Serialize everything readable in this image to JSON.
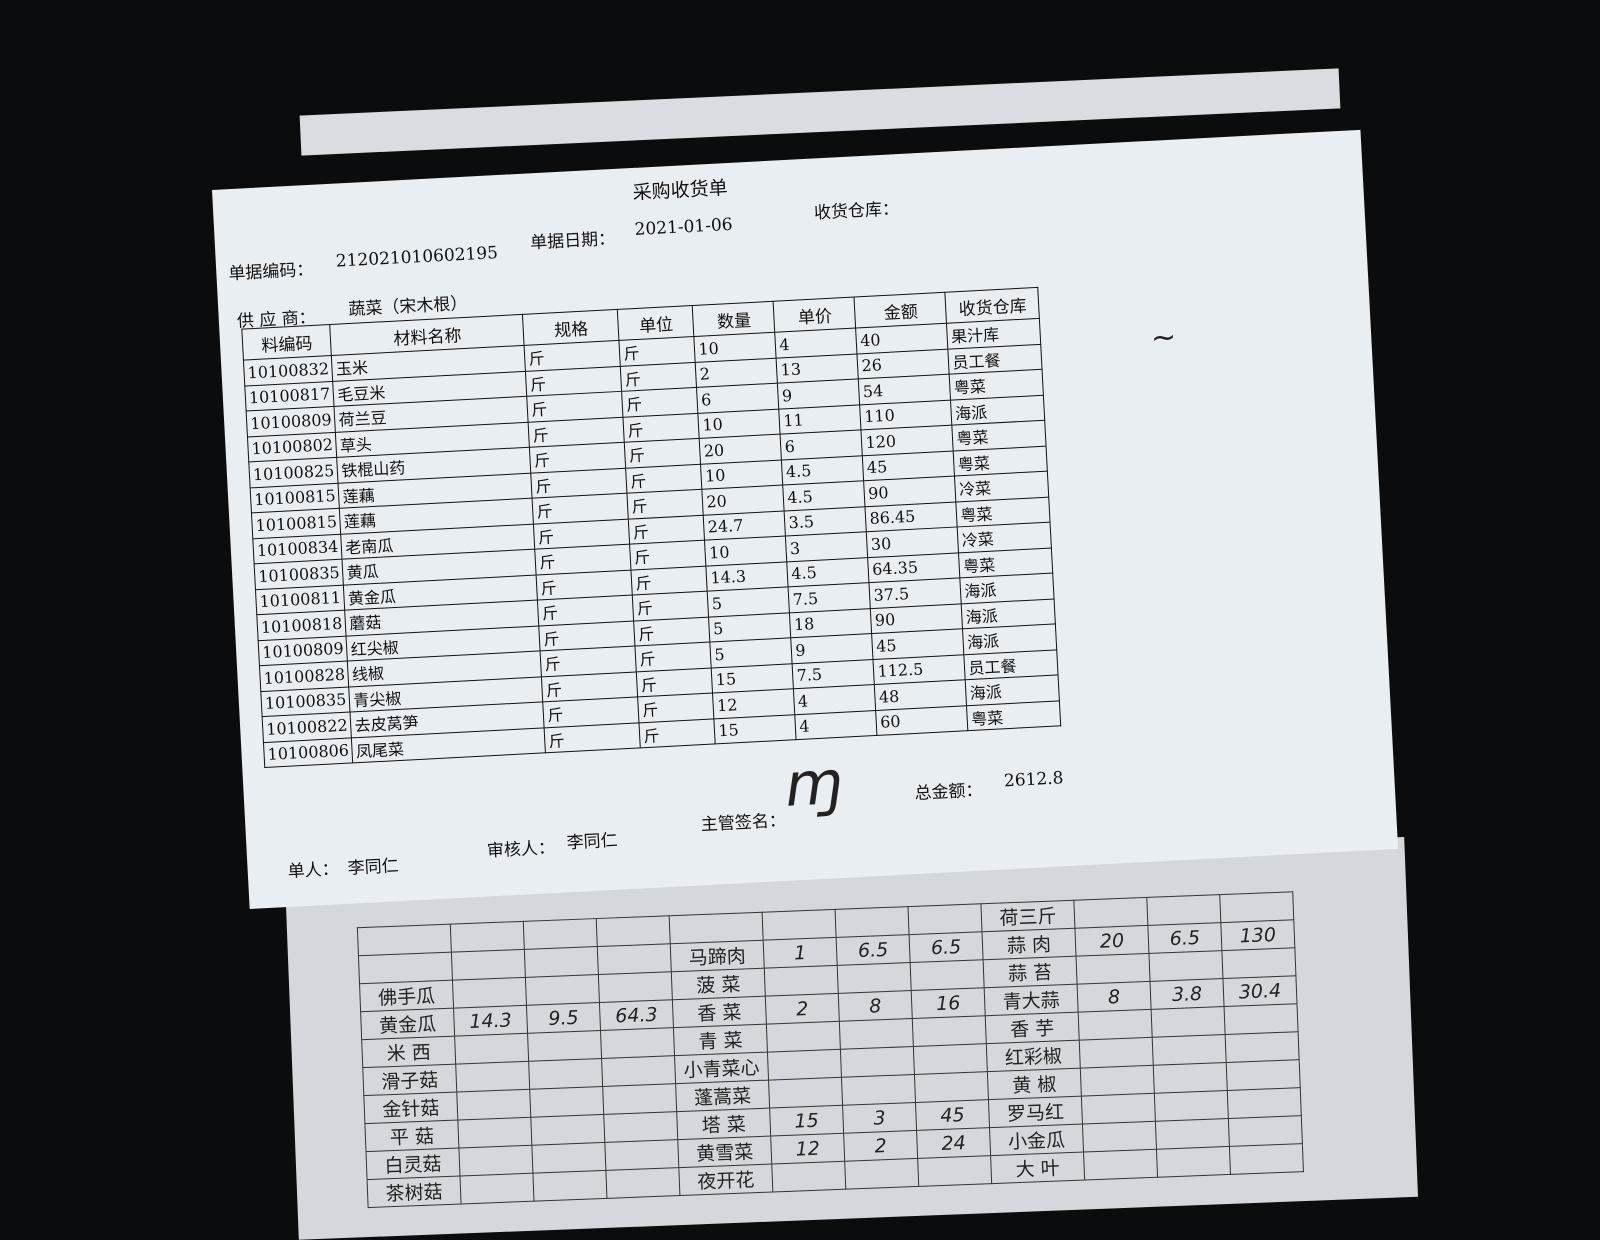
{
  "document": {
    "title": "采购收货单",
    "doc_no_label": "单据编码：",
    "doc_no": "212021010602195",
    "date_label": "单据日期：",
    "date": "2021-01-06",
    "warehouse_label": "收货仓库：",
    "supplier_label": "供 应 商：",
    "supplier": "蔬菜（宋木根）",
    "columns": [
      "料编码",
      "材料名称",
      "规格",
      "单位",
      "数量",
      "单价",
      "金额",
      "收货仓库"
    ],
    "rows": [
      [
        "10100832",
        "玉米",
        "斤",
        "斤",
        "10",
        "4",
        "40",
        "果汁库"
      ],
      [
        "10100817",
        "毛豆米",
        "斤",
        "斤",
        "2",
        "13",
        "26",
        "员工餐"
      ],
      [
        "10100809",
        "荷兰豆",
        "斤",
        "斤",
        "6",
        "9",
        "54",
        "粤菜"
      ],
      [
        "10100802",
        "草头",
        "斤",
        "斤",
        "10",
        "11",
        "110",
        "海派"
      ],
      [
        "10100825",
        "铁棍山药",
        "斤",
        "斤",
        "20",
        "6",
        "120",
        "粤菜"
      ],
      [
        "10100815",
        "莲藕",
        "斤",
        "斤",
        "10",
        "4.5",
        "45",
        "粤菜"
      ],
      [
        "10100815",
        "莲藕",
        "斤",
        "斤",
        "20",
        "4.5",
        "90",
        "冷菜"
      ],
      [
        "10100834",
        "老南瓜",
        "斤",
        "斤",
        "24.7",
        "3.5",
        "86.45",
        "粤菜"
      ],
      [
        "10100835",
        "黄瓜",
        "斤",
        "斤",
        "10",
        "3",
        "30",
        "冷菜"
      ],
      [
        "10100811",
        "黄金瓜",
        "斤",
        "斤",
        "14.3",
        "4.5",
        "64.35",
        "粤菜"
      ],
      [
        "10100818",
        "蘑菇",
        "斤",
        "斤",
        "5",
        "7.5",
        "37.5",
        "海派"
      ],
      [
        "10100809",
        "红尖椒",
        "斤",
        "斤",
        "5",
        "18",
        "90",
        "海派"
      ],
      [
        "10100828",
        "线椒",
        "斤",
        "斤",
        "5",
        "9",
        "45",
        "海派"
      ],
      [
        "10100835",
        "青尖椒",
        "斤",
        "斤",
        "15",
        "7.5",
        "112.5",
        "员工餐"
      ],
      [
        "10100822",
        "去皮莴笋",
        "斤",
        "斤",
        "12",
        "4",
        "48",
        "海派"
      ],
      [
        "10100806",
        "凤尾菜",
        "斤",
        "斤",
        "15",
        "4",
        "60",
        "粤菜"
      ]
    ],
    "maker_label": "单人：",
    "maker": "李同仁",
    "reviewer_label": "审核人：",
    "reviewer": "李同仁",
    "supervisor_label": "主管签名：",
    "total_label": "总金额：",
    "total": "2612.8"
  },
  "lower_sheet": {
    "rows": [
      [
        "",
        "",
        "",
        "",
        "",
        "",
        "",
        "",
        "荷三斤",
        "",
        "",
        ""
      ],
      [
        "",
        "",
        "",
        "",
        "马蹄肉",
        "1",
        "6.5",
        "6.5",
        "蒜 肉",
        "20",
        "6.5",
        "130"
      ],
      [
        "佛手瓜",
        "",
        "",
        "",
        "菠 菜",
        "",
        "",
        "",
        "蒜 苔",
        "",
        "",
        ""
      ],
      [
        "黄金瓜",
        "14.3",
        "9.5",
        "64.3",
        "香 菜",
        "2",
        "8",
        "16",
        "青大蒜",
        "8",
        "3.8",
        "30.4"
      ],
      [
        "米 西",
        "",
        "",
        "",
        "青 菜",
        "",
        "",
        "",
        "香 芋",
        "",
        "",
        ""
      ],
      [
        "滑子菇",
        "",
        "",
        "",
        "小青菜心",
        "",
        "",
        "",
        "红彩椒",
        "",
        "",
        ""
      ],
      [
        "金针菇",
        "",
        "",
        "",
        "蓬蒿菜",
        "",
        "",
        "",
        "黄 椒",
        "",
        "",
        ""
      ],
      [
        "平 菇",
        "",
        "",
        "",
        "塔 菜",
        "15",
        "3",
        "45",
        "罗马红",
        "",
        "",
        ""
      ],
      [
        "白灵菇",
        "",
        "",
        "",
        "黄雪菜",
        "12",
        "2",
        "24",
        "小金瓜",
        "",
        "",
        ""
      ],
      [
        "茶树菇",
        "",
        "",
        "",
        "夜开花",
        "",
        "",
        "",
        "大 叶",
        "",
        "",
        ""
      ]
    ]
  }
}
